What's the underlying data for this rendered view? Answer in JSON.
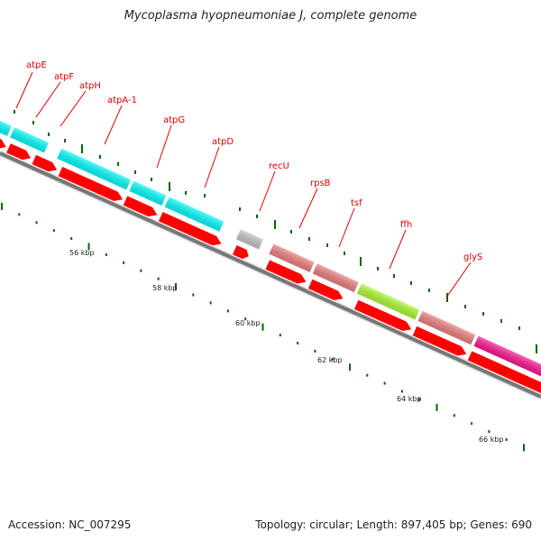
{
  "title": "Mycoplasma hyopneumoniae J, complete genome",
  "footer": {
    "accession": "Accession: NC_007295",
    "summary": "Topology: circular; Length: 897,405 bp; Genes: 690"
  },
  "colors": {
    "cds": "#ff0000",
    "atp_operon": "#00ffff",
    "recU": "#c8c8c8",
    "rpsB_tsf": "#f08080",
    "ffh": "#adff2f",
    "glyS": "#ff1493",
    "ticks": "#006600",
    "backbone": "#777777"
  },
  "gene_labels": [
    "atpE",
    "atpF",
    "atpH",
    "atpA-1",
    "atpG",
    "atpD",
    "recU",
    "rpsB",
    "tsf",
    "ffh",
    "glyS"
  ],
  "scale_labels": [
    "56 kbp",
    "58 kbp",
    "60 kbp",
    "62 kbp",
    "64 kbp",
    "66 kbp"
  ]
}
